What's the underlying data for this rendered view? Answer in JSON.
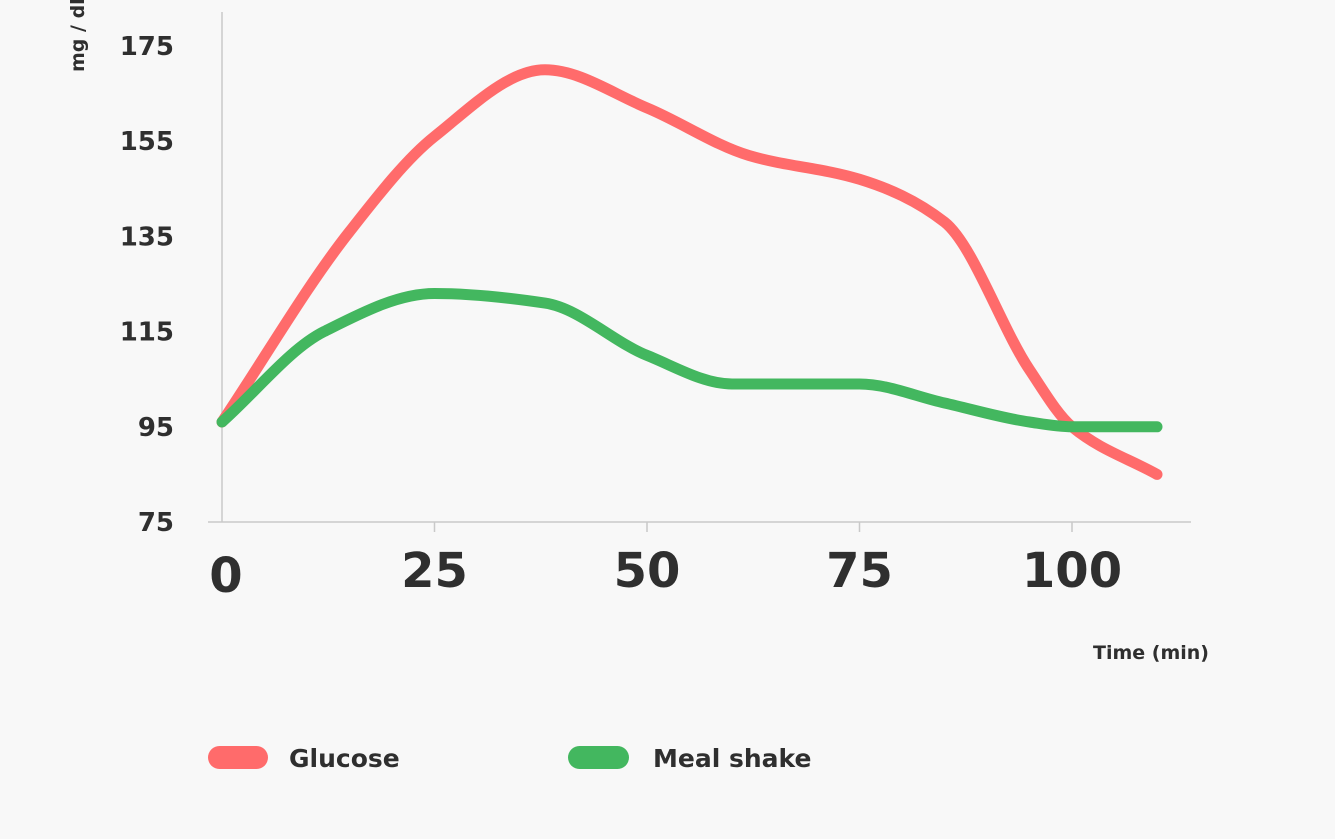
{
  "chart_data": {
    "type": "line",
    "title": "",
    "xlabel": "Time (min)",
    "ylabel": "mg / dl",
    "xlim": [
      0,
      112
    ],
    "ylim": [
      75,
      179
    ],
    "x_ticks": [
      "0",
      "25",
      "50",
      "75",
      "100"
    ],
    "y_ticks": [
      "75",
      "95",
      "115",
      "135",
      "155",
      "175"
    ],
    "grid": false,
    "legend_position": "bottom-left",
    "smooth": true,
    "series": [
      {
        "name": "Glucose",
        "color": "#ff6b6b",
        "x": [
          0,
          15,
          25,
          38,
          50,
          62,
          75,
          85,
          95,
          100,
          110
        ],
        "y": [
          96,
          136,
          156,
          170,
          162,
          152,
          147,
          138,
          107,
          95,
          85
        ]
      },
      {
        "name": "Meal shake",
        "color": "#43b75f",
        "x": [
          0,
          12,
          25,
          38,
          50,
          60,
          75,
          85,
          95,
          100,
          110
        ],
        "y": [
          96,
          115,
          123,
          121,
          110,
          104,
          104,
          100,
          96,
          95,
          95
        ]
      }
    ]
  }
}
